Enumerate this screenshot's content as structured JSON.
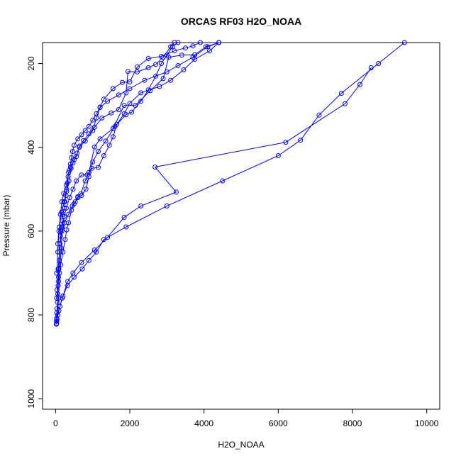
{
  "chart_data": {
    "type": "line",
    "title": "ORCAS RF03 H2O_NOAA",
    "xlabel": "H2O_NOAA",
    "ylabel": "Pressure (mbar)",
    "xlim": [
      -350,
      10350
    ],
    "ylim": [
      1025,
      150
    ],
    "y_reversed": true,
    "xticks": [
      0,
      2000,
      4000,
      6000,
      8000,
      10000
    ],
    "yticks": [
      200,
      400,
      600,
      800,
      1000
    ],
    "grid": false,
    "color": "#0000ff",
    "series": [
      {
        "points": [
          [
            20,
            822
          ],
          [
            25,
            815
          ],
          [
            30,
            808
          ],
          [
            35,
            795
          ],
          [
            40,
            785
          ],
          [
            50,
            770
          ],
          [
            60,
            750
          ],
          [
            70,
            730
          ],
          [
            80,
            710
          ],
          [
            90,
            690
          ],
          [
            100,
            670
          ],
          [
            110,
            650
          ],
          [
            120,
            630
          ],
          [
            130,
            612
          ],
          [
            140,
            600
          ],
          [
            160,
            590
          ],
          [
            180,
            575
          ],
          [
            200,
            560
          ],
          [
            230,
            545
          ],
          [
            250,
            530
          ],
          [
            280,
            515
          ],
          [
            300,
            500
          ],
          [
            320,
            485
          ],
          [
            340,
            470
          ],
          [
            370,
            455
          ],
          [
            400,
            440
          ],
          [
            430,
            425
          ],
          [
            460,
            410
          ],
          [
            500,
            395
          ],
          [
            600,
            380
          ],
          [
            700,
            370
          ],
          [
            800,
            360
          ],
          [
            900,
            350
          ],
          [
            1000,
            335
          ],
          [
            1100,
            320
          ],
          [
            1200,
            305
          ],
          [
            1400,
            290
          ],
          [
            1700,
            275
          ],
          [
            2000,
            260
          ],
          [
            2400,
            240
          ],
          [
            3000,
            220
          ],
          [
            3300,
            205
          ],
          [
            3700,
            185
          ],
          [
            4100,
            160
          ],
          [
            4400,
            150
          ]
        ]
      },
      {
        "points": [
          [
            30,
            820
          ],
          [
            60,
            800
          ],
          [
            120,
            780
          ],
          [
            200,
            755
          ],
          [
            320,
            730
          ],
          [
            500,
            710
          ],
          [
            720,
            690
          ],
          [
            900,
            670
          ],
          [
            1100,
            650
          ],
          [
            1300,
            620
          ],
          [
            1900,
            590
          ],
          [
            3000,
            540
          ],
          [
            4500,
            480
          ],
          [
            6000,
            420
          ],
          [
            6600,
            383
          ],
          [
            7100,
            323
          ],
          [
            7700,
            271
          ],
          [
            8700,
            200
          ],
          [
            9400,
            150
          ]
        ]
      },
      {
        "points": [
          [
            30,
            815
          ],
          [
            90,
            790
          ],
          [
            180,
            760
          ],
          [
            330,
            720
          ],
          [
            470,
            700
          ],
          [
            700,
            675
          ],
          [
            1050,
            645
          ],
          [
            1400,
            615
          ],
          [
            1850,
            567
          ],
          [
            2300,
            540
          ],
          [
            3250,
            507
          ],
          [
            2680,
            447
          ],
          [
            6200,
            388
          ],
          [
            7800,
            296
          ],
          [
            8200,
            250
          ],
          [
            8500,
            210
          ]
        ]
      },
      {
        "points": [
          [
            40,
            810
          ],
          [
            80,
            760
          ],
          [
            110,
            700
          ],
          [
            150,
            640
          ],
          [
            190,
            590
          ],
          [
            230,
            565
          ],
          [
            290,
            545
          ],
          [
            380,
            520
          ],
          [
            470,
            500
          ],
          [
            560,
            480
          ],
          [
            700,
            466
          ],
          [
            850,
            466
          ],
          [
            980,
            450
          ],
          [
            1150,
            448
          ],
          [
            1300,
            420
          ],
          [
            1450,
            395
          ],
          [
            1550,
            375
          ],
          [
            1650,
            345
          ],
          [
            1850,
            320
          ],
          [
            2000,
            295
          ],
          [
            2300,
            270
          ],
          [
            2800,
            255
          ],
          [
            3100,
            240
          ],
          [
            3450,
            215
          ],
          [
            3750,
            190
          ],
          [
            4150,
            170
          ],
          [
            4400,
            150
          ]
        ]
      },
      {
        "points": [
          [
            40,
            740
          ],
          [
            70,
            690
          ],
          [
            110,
            640
          ],
          [
            170,
            600
          ],
          [
            240,
            580
          ],
          [
            350,
            560
          ],
          [
            450,
            540
          ],
          [
            530,
            530
          ],
          [
            600,
            518
          ],
          [
            680,
            511
          ],
          [
            800,
            480
          ],
          [
            900,
            460
          ],
          [
            1050,
            399
          ],
          [
            1200,
            380
          ],
          [
            1550,
            355
          ],
          [
            1850,
            300
          ],
          [
            2150,
            300
          ],
          [
            2550,
            265
          ],
          [
            2900,
            236
          ],
          [
            3050,
            185
          ],
          [
            3400,
            180
          ],
          [
            3750,
            179
          ],
          [
            4050,
            160
          ],
          [
            4400,
            150
          ]
        ]
      },
      {
        "points": [
          [
            30,
            760
          ],
          [
            80,
            720
          ],
          [
            140,
            680
          ],
          [
            200,
            650
          ],
          [
            260,
            620
          ],
          [
            300,
            597
          ],
          [
            350,
            580
          ],
          [
            430,
            550
          ],
          [
            500,
            535
          ],
          [
            600,
            520
          ],
          [
            700,
            515
          ],
          [
            820,
            500
          ],
          [
            900,
            470
          ],
          [
            1000,
            435
          ],
          [
            1150,
            410
          ],
          [
            1350,
            385
          ],
          [
            1600,
            350
          ],
          [
            1900,
            322
          ],
          [
            2050,
            316
          ],
          [
            2300,
            290
          ],
          [
            2500,
            263
          ],
          [
            2700,
            230
          ],
          [
            2850,
            200
          ],
          [
            3000,
            180
          ],
          [
            3150,
            160
          ],
          [
            3300,
            150
          ]
        ]
      },
      {
        "points": [
          [
            30,
            700
          ],
          [
            60,
            650
          ],
          [
            90,
            600
          ],
          [
            130,
            560
          ],
          [
            170,
            530
          ],
          [
            220,
            510
          ],
          [
            290,
            490
          ],
          [
            350,
            460
          ],
          [
            400,
            447
          ],
          [
            470,
            437
          ],
          [
            560,
            422
          ],
          [
            640,
            400
          ],
          [
            800,
            385
          ],
          [
            1000,
            360
          ],
          [
            1100,
            330
          ],
          [
            1200,
            304
          ],
          [
            1300,
            285
          ],
          [
            1550,
            260
          ],
          [
            1800,
            245
          ],
          [
            2000,
            244
          ],
          [
            2200,
            208
          ],
          [
            2500,
            188
          ],
          [
            2850,
            183
          ],
          [
            3200,
            170
          ],
          [
            3500,
            163
          ],
          [
            3700,
            158
          ],
          [
            3900,
            150
          ]
        ]
      },
      {
        "points": [
          [
            60,
            630
          ],
          [
            100,
            590
          ],
          [
            160,
            555
          ],
          [
            230,
            530
          ],
          [
            300,
            505
          ],
          [
            360,
            480
          ],
          [
            420,
            450
          ],
          [
            500,
            430
          ],
          [
            580,
            414
          ],
          [
            650,
            397
          ],
          [
            750,
            384
          ],
          [
            900,
            368
          ],
          [
            1050,
            352
          ],
          [
            1250,
            330
          ],
          [
            1500,
            318
          ],
          [
            1700,
            310
          ],
          [
            1900,
            270
          ],
          [
            1950,
            219
          ],
          [
            2200,
            220
          ],
          [
            2500,
            210
          ],
          [
            2700,
            202
          ],
          [
            2900,
            185
          ],
          [
            3100,
            160
          ],
          [
            3200,
            150
          ]
        ]
      }
    ]
  }
}
